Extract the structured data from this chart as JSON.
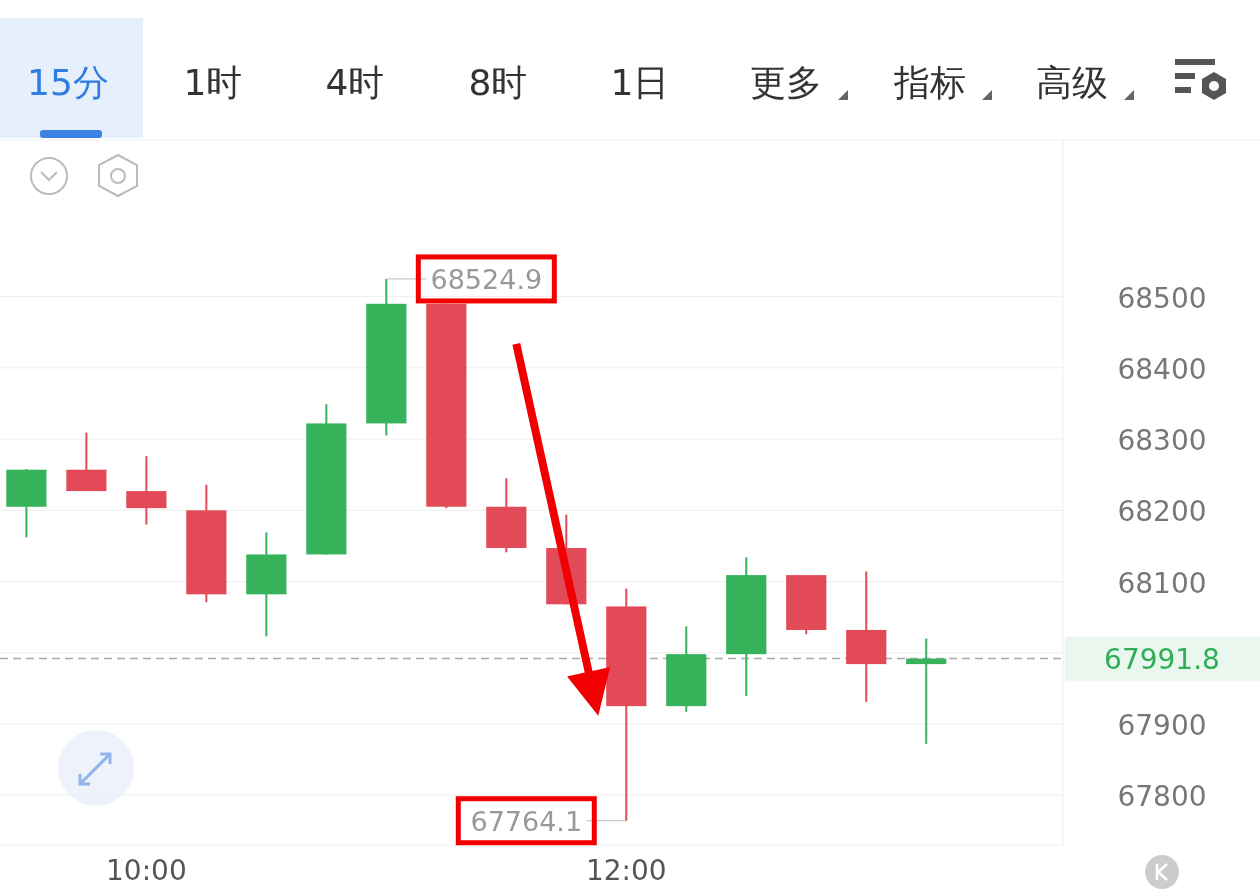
{
  "chart_data": {
    "type": "candlestick",
    "x": [
      9.5,
      9.75,
      10,
      10.25,
      10.5,
      10.75,
      11,
      11.25,
      11.5,
      11.75,
      12,
      12.25,
      12.5,
      12.75,
      13,
      13.25
    ],
    "ohlc": [
      [
        68205,
        68258,
        68162,
        68257
      ],
      [
        68257,
        68309,
        68227,
        68227
      ],
      [
        68227,
        68276,
        68180,
        68203
      ],
      [
        68200,
        68236,
        68071,
        68082
      ],
      [
        68082,
        68169,
        68023,
        68138
      ],
      [
        68138,
        68349,
        68138,
        68322
      ],
      [
        68322,
        68524.9,
        68305,
        68490
      ],
      [
        68490,
        68490,
        68203,
        68205
      ],
      [
        68205,
        68245,
        68141,
        68147
      ],
      [
        68147,
        68194,
        68068,
        68068
      ],
      [
        68065,
        68090,
        67764.1,
        67925
      ],
      [
        67925,
        68037,
        67917,
        67998
      ],
      [
        67998,
        68134,
        67939,
        68109
      ],
      [
        68109,
        68109,
        68026,
        68032
      ],
      [
        68032,
        68114,
        67931,
        67984
      ],
      [
        67984,
        68020,
        67872,
        67991.8
      ]
    ],
    "colors": [
      "#36b25b",
      "#e34a57",
      "#e34a57",
      "#e34a57",
      "#36b25b",
      "#36b25b",
      "#36b25b",
      "#e34a57",
      "#e34a57",
      "#e34a57",
      "#e34a57",
      "#36b25b",
      "#36b25b",
      "#e34a57",
      "#e34a57",
      "#36b25b"
    ],
    "xlim": [
      9.39,
      13.82
    ],
    "xticks": [
      {
        "value": 10,
        "label": "10:00"
      },
      {
        "value": 12,
        "label": "12:00"
      }
    ],
    "ylim": [
      67730,
      68720
    ],
    "yticks": [
      67800,
      67900,
      {
        "value": 68000,
        "label": null
      },
      68100,
      68200,
      68300,
      68400,
      68500
    ],
    "grid": "y",
    "ref_lines": [
      {
        "axis": "y",
        "value": 67991.8,
        "label": "67991.8",
        "color": "#aaaaaa",
        "line_style": "dashed"
      }
    ],
    "annotations": [
      "15分",
      "1时",
      "4时",
      "8时",
      "1日",
      "更多",
      "指标",
      "高级",
      {
        "text": "68524.9",
        "x": 11,
        "y": 68524.9
      },
      {
        "text": "67764.1",
        "x": 12,
        "y": 67764.1
      }
    ]
  }
}
